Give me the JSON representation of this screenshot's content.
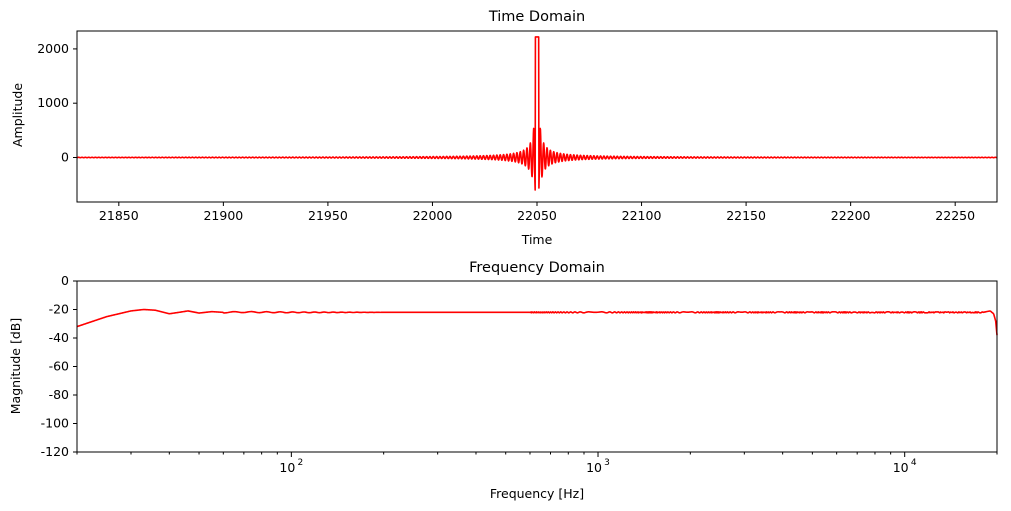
{
  "chart_data": [
    {
      "type": "line",
      "title": "Time Domain",
      "xlabel": "Time",
      "ylabel": "Amplitude",
      "xlim": [
        21830,
        22270
      ],
      "ylim": [
        -820,
        2330
      ],
      "xticks": [
        21850,
        21900,
        21950,
        22000,
        22050,
        22100,
        22150,
        22200,
        22250
      ],
      "yticks": [
        0,
        1000,
        2000
      ],
      "xscale": "linear",
      "grid": false,
      "series": [
        {
          "color": "#ff0000",
          "shape": "sinc impulse",
          "center": 22050,
          "peak": 2220,
          "min": -680,
          "oscillation_period": 1.6
        }
      ]
    },
    {
      "type": "line",
      "title": "Frequency Domain",
      "xlabel": "Frequency [Hz]",
      "ylabel": "Magnitude [dB]",
      "xlim": [
        20,
        20000
      ],
      "ylim": [
        -120,
        0
      ],
      "xticks": [
        100,
        1000,
        10000
      ],
      "xtick_labels": [
        [
          "10",
          "2"
        ],
        [
          "10",
          "3"
        ],
        [
          "10",
          "4"
        ]
      ],
      "yticks": [
        0,
        -20,
        -40,
        -60,
        -80,
        -100,
        -120
      ],
      "xscale": "log",
      "grid": false,
      "series": [
        {
          "color": "#ff0000",
          "points": [
            [
              20,
              -32
            ],
            [
              25,
              -25
            ],
            [
              30,
              -21
            ],
            [
              33,
              -20
            ],
            [
              36,
              -20.5
            ],
            [
              40,
              -23
            ],
            [
              43,
              -22
            ],
            [
              46,
              -21
            ],
            [
              50,
              -22.5
            ],
            [
              55,
              -21.5
            ],
            [
              60,
              -22
            ],
            [
              70,
              -21.8
            ],
            [
              100,
              -22
            ],
            [
              1000,
              -22
            ],
            [
              10000,
              -22
            ],
            [
              18000,
              -22
            ],
            [
              19000,
              -21
            ],
            [
              19500,
              -23
            ],
            [
              19800,
              -28
            ],
            [
              20000,
              -38
            ]
          ]
        }
      ]
    }
  ]
}
